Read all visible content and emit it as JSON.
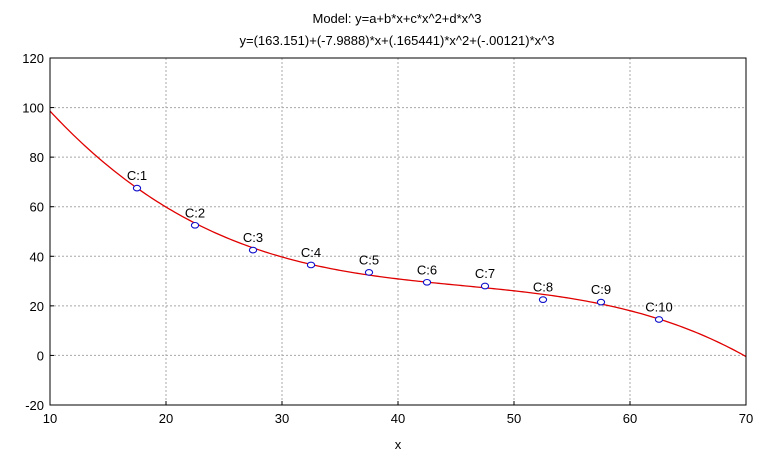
{
  "chart_data": {
    "type": "scatter",
    "title": "Model: y=a+b*x+c*x^2+d*x^3",
    "subtitle": "y=(163.151)+(-7.9888)*x+(.165441)*x^2+(-.00121)*x^3",
    "xlabel": "x",
    "ylabel": "",
    "xlim": [
      10,
      70
    ],
    "ylim": [
      -20,
      120
    ],
    "x_ticks": [
      10,
      20,
      30,
      40,
      50,
      60,
      70
    ],
    "y_ticks": [
      -20,
      0,
      20,
      40,
      60,
      80,
      100,
      120
    ],
    "grid": true,
    "points": [
      {
        "label": "C:1",
        "x": 17.5,
        "y": 67.5
      },
      {
        "label": "C:2",
        "x": 22.5,
        "y": 52.5
      },
      {
        "label": "C:3",
        "x": 27.5,
        "y": 42.5
      },
      {
        "label": "C:4",
        "x": 32.5,
        "y": 36.5
      },
      {
        "label": "C:5",
        "x": 37.5,
        "y": 33.5
      },
      {
        "label": "C:6",
        "x": 42.5,
        "y": 29.5
      },
      {
        "label": "C:7",
        "x": 47.5,
        "y": 28.0
      },
      {
        "label": "C:8",
        "x": 52.5,
        "y": 22.5
      },
      {
        "label": "C:9",
        "x": 57.5,
        "y": 21.5
      },
      {
        "label": "C:10",
        "x": 62.5,
        "y": 14.5
      }
    ],
    "fit": {
      "type": "cubic",
      "coefficients": {
        "a": 163.151,
        "b": -7.9888,
        "c": 0.165441,
        "d": -0.00121
      }
    },
    "colors": {
      "points": "#1010cc",
      "fit": "#e00000",
      "grid": "#a8a8a8"
    }
  }
}
